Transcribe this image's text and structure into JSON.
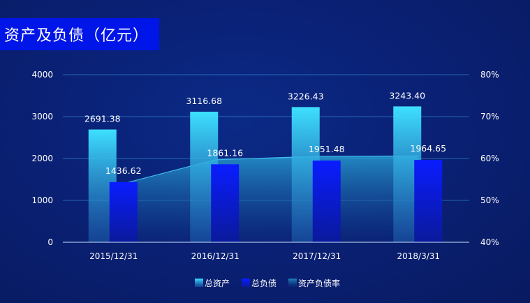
{
  "title": "资产及负债（亿元）",
  "colors": {
    "asset_top": "#3ee0ff",
    "asset_bottom": "#1e5fb0",
    "debt_top": "#0a1cff",
    "debt_bottom": "#0a1a9a",
    "area_top": "#2aa8d8",
    "area_bottom": "#0c2a80",
    "grid": "#3aa0e0"
  },
  "chart_data": {
    "type": "bar",
    "categories": [
      "2015/12/31",
      "2016/12/31",
      "2017/12/31",
      "2018/3/31"
    ],
    "series": [
      {
        "name": "总资产",
        "type": "bar",
        "axis": "left",
        "values": [
          2691.38,
          3116.68,
          3226.43,
          3243.4
        ],
        "labels": [
          "2691.38",
          "3116.68",
          "3226.43",
          "3243.40"
        ]
      },
      {
        "name": "总负债",
        "type": "bar",
        "axis": "left",
        "values": [
          1436.62,
          1861.16,
          1951.48,
          1964.65
        ],
        "labels": [
          "1436.62",
          "1861.16",
          "1951.48",
          "1964.65"
        ]
      },
      {
        "name": "资产负债率",
        "type": "area",
        "axis": "right",
        "values": [
          53.4,
          59.7,
          60.5,
          60.6
        ]
      }
    ],
    "y_left": {
      "min": 0,
      "max": 4000,
      "ticks": [
        "0",
        "1000",
        "2000",
        "3000",
        "4000"
      ],
      "tick_values": [
        0,
        1000,
        2000,
        3000,
        4000
      ]
    },
    "y_right": {
      "min": 40,
      "max": 80,
      "ticks": [
        "40%",
        "50%",
        "60%",
        "70%",
        "80%"
      ],
      "tick_values": [
        40,
        50,
        60,
        70,
        80
      ]
    },
    "grid": true,
    "legend": "bottom-center"
  }
}
